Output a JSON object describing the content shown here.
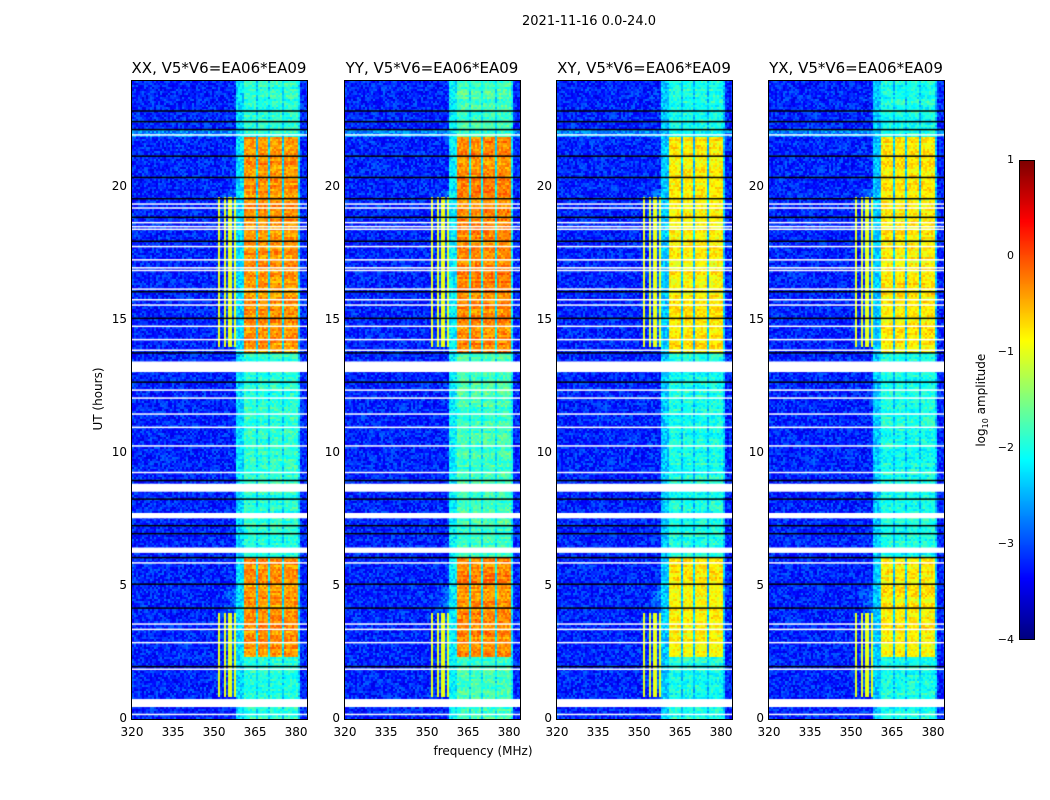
{
  "chart_data": {
    "type": "heatmap",
    "title": "2021-11-16 0.0-24.0",
    "xlabel": "frequency (MHz)",
    "ylabel": "UT (hours)",
    "xlim": [
      320,
      384
    ],
    "ylim": [
      0,
      24
    ],
    "xticks": [
      320,
      335,
      350,
      365,
      380
    ],
    "yticks": [
      0,
      5,
      10,
      15,
      20
    ],
    "panels": [
      {
        "title": "XX, V5*V6=EA06*EA09",
        "high_level": -0.35,
        "low_level": -1.9
      },
      {
        "title": "YY, V5*V6=EA06*EA09",
        "high_level": -0.3,
        "low_level": -1.8
      },
      {
        "title": "XY, V5*V6=EA06*EA09",
        "high_level": -0.8,
        "low_level": -2.0
      },
      {
        "title": "YX, V5*V6=EA06*EA09",
        "high_level": -0.8,
        "low_level": -2.0
      }
    ],
    "background_level": -3.2,
    "band_segments_mhz": [
      [
        360.5,
        364.8
      ],
      [
        365.4,
        369.6
      ],
      [
        370.3,
        374.6
      ],
      [
        375.3,
        380.2
      ]
    ],
    "high_activity_hours": [
      [
        2.4,
        6.1
      ],
      [
        13.8,
        21.9
      ]
    ],
    "rfi_lines_mhz": [
      351.3,
      353.4,
      355.5,
      357.0
    ],
    "rfi_hours": [
      [
        0.9,
        4.0
      ],
      [
        14.0,
        19.7
      ]
    ],
    "flagged_white_bands_hours": [
      [
        13.05,
        13.45
      ],
      [
        8.55,
        8.85
      ],
      [
        7.55,
        7.75
      ],
      [
        6.25,
        6.45
      ],
      [
        0.45,
        0.75
      ]
    ],
    "flagged_white_rows_hours": [
      22.0,
      19.4,
      19.25,
      18.7,
      18.55,
      18.45,
      17.8,
      17.3,
      17.0,
      16.9,
      16.2,
      15.8,
      15.6,
      14.8,
      14.3,
      13.9,
      12.4,
      12.1,
      11.5,
      11.0,
      10.3,
      9.3,
      5.9,
      3.6,
      3.4,
      2.9,
      1.9,
      0.2
    ],
    "black_rows_hours": [
      22.9,
      22.5,
      22.2,
      21.2,
      20.4,
      19.6,
      18.9,
      18.0,
      16.1,
      15.1,
      13.8,
      12.7,
      9.0,
      8.3,
      7.3,
      7.0,
      6.1,
      5.1,
      4.2,
      2.0
    ],
    "colorbar": {
      "label_prefix": "log",
      "label_sub": "10",
      "label_suffix": " amplitude",
      "range": [
        -4,
        1
      ],
      "ticks": [
        "1",
        "0",
        "−1",
        "−2",
        "−3",
        "−4"
      ],
      "colormap": "jet"
    }
  }
}
